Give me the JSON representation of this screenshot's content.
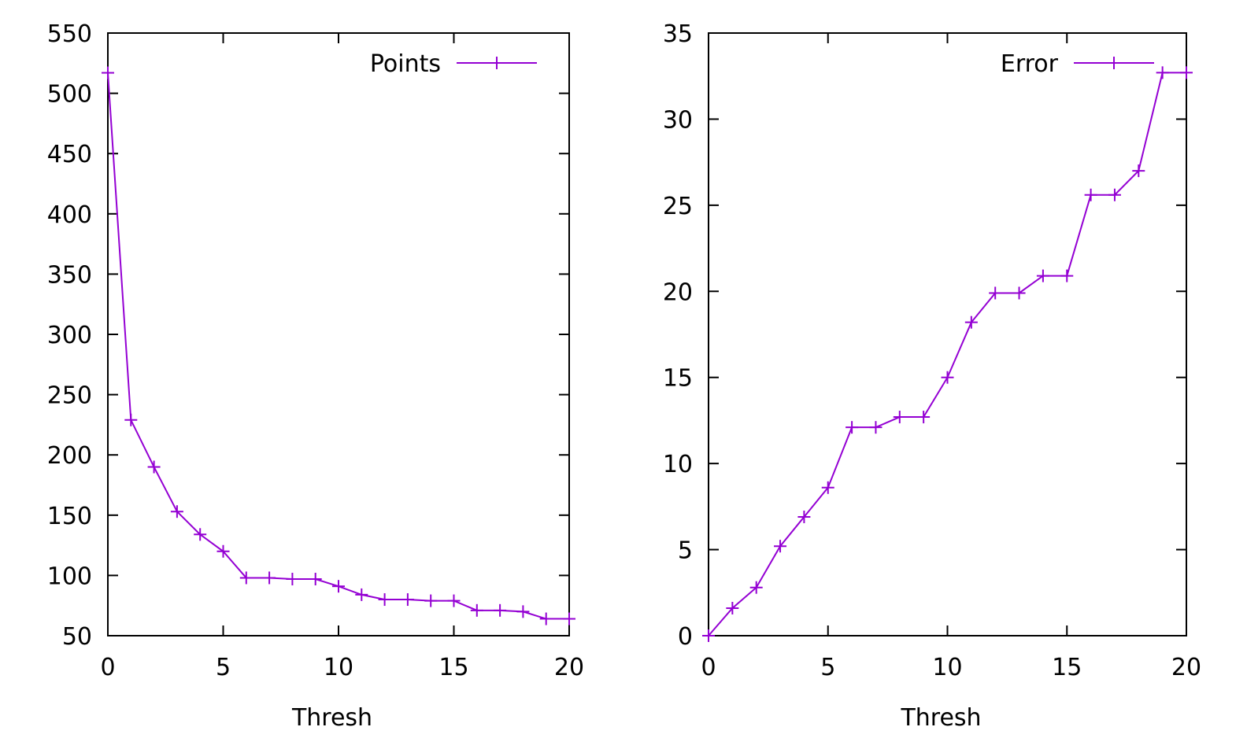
{
  "chart_data": [
    {
      "type": "line",
      "title": "",
      "xlabel": "Thresh",
      "ylabel": "",
      "xlim": [
        0,
        20
      ],
      "ylim": [
        50,
        550
      ],
      "xticks": [
        "0",
        "5",
        "10",
        "15",
        "20"
      ],
      "yticks": [
        "50",
        "100",
        "150",
        "200",
        "250",
        "300",
        "350",
        "400",
        "450",
        "500",
        "550"
      ],
      "grid": false,
      "legend_position": "top-right",
      "color": "#9400d3",
      "marker": "plus",
      "series": [
        {
          "name": "Points",
          "x": [
            0,
            1,
            2,
            3,
            4,
            5,
            6,
            7,
            8,
            9,
            10,
            11,
            12,
            13,
            14,
            15,
            16,
            17,
            18,
            19,
            20
          ],
          "values": [
            517,
            229,
            190,
            153,
            134,
            120,
            98,
            98,
            97,
            97,
            91,
            84,
            80,
            80,
            79,
            79,
            71,
            71,
            70,
            64,
            64
          ]
        }
      ]
    },
    {
      "type": "line",
      "title": "",
      "xlabel": "Thresh",
      "ylabel": "",
      "xlim": [
        0,
        20
      ],
      "ylim": [
        0,
        35
      ],
      "xticks": [
        "0",
        "5",
        "10",
        "15",
        "20"
      ],
      "yticks": [
        "0",
        "5",
        "10",
        "15",
        "20",
        "25",
        "30",
        "35"
      ],
      "grid": false,
      "legend_position": "top-right",
      "color": "#9400d3",
      "marker": "plus",
      "series": [
        {
          "name": "Error",
          "x": [
            0,
            1,
            2,
            3,
            4,
            5,
            6,
            7,
            8,
            9,
            10,
            11,
            12,
            13,
            14,
            15,
            16,
            17,
            18,
            19,
            20
          ],
          "values": [
            0,
            1.6,
            2.8,
            5.2,
            6.9,
            8.6,
            12.1,
            12.1,
            12.7,
            12.7,
            15.0,
            18.2,
            19.9,
            19.9,
            20.9,
            20.9,
            25.6,
            25.6,
            27.0,
            32.7,
            32.7
          ]
        }
      ]
    }
  ]
}
